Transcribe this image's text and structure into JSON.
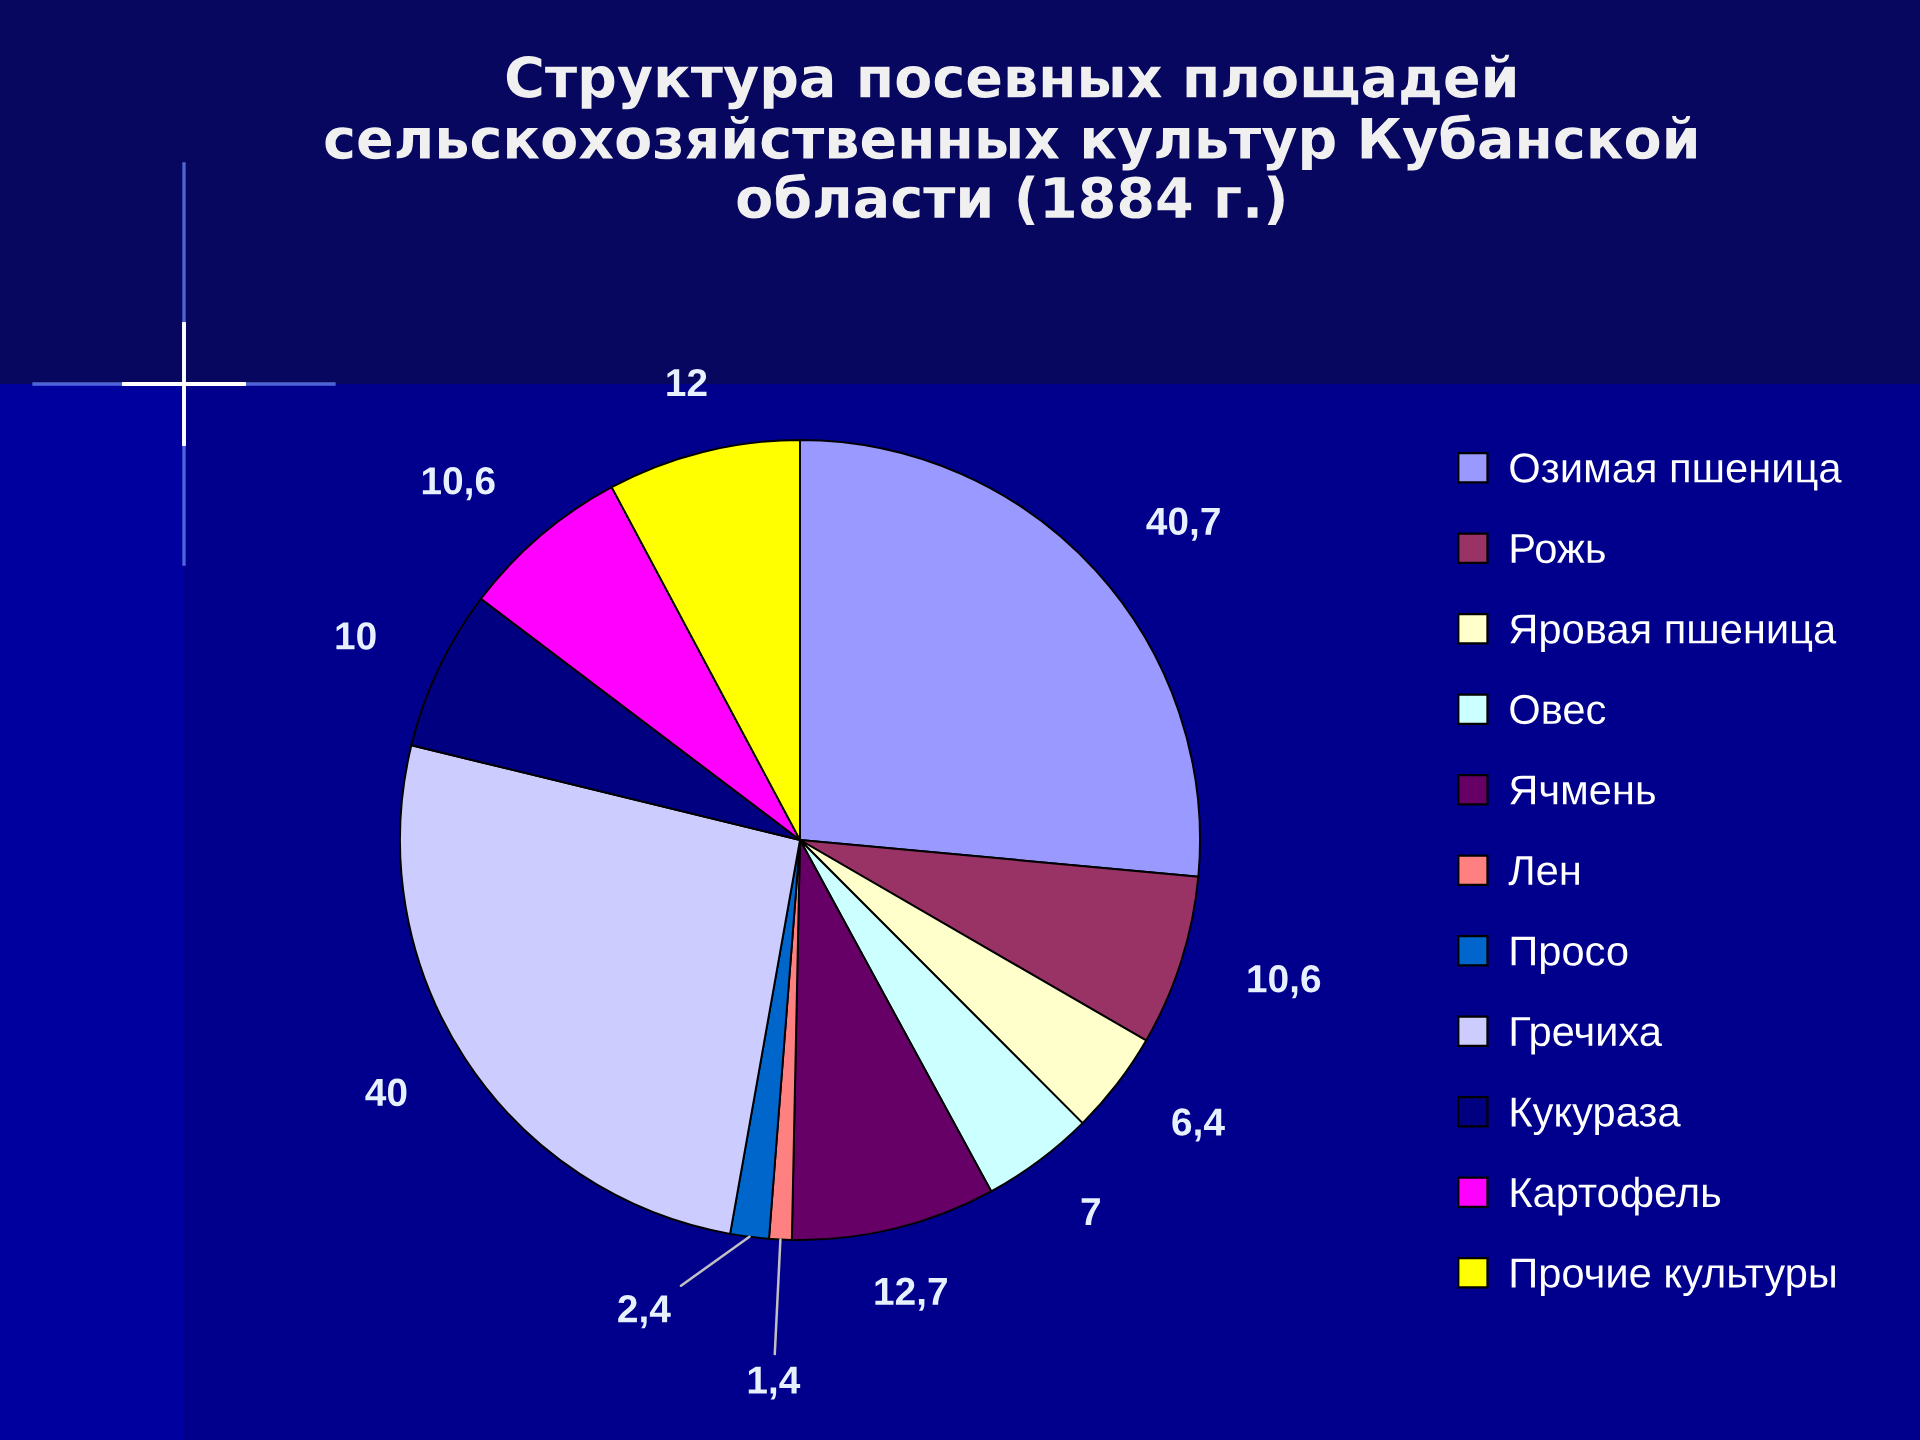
{
  "chart_data": {
    "type": "pie",
    "title": "Структура посевных площадей\nсельскохозяйственных культур Кубанской\nобласти (1884 г.)",
    "categories": [
      "Озимая пшеница",
      "Рожь",
      "Яровая пшеница",
      "Овес",
      "Ячмень",
      "Лен",
      "Просо",
      "Гречиха",
      "Кукураза",
      "Картофель",
      "Прочие культуры"
    ],
    "values": [
      40.7,
      10.6,
      6.4,
      7,
      12.7,
      1.4,
      2.4,
      40,
      10,
      10.6,
      12
    ],
    "value_labels": [
      "40,7",
      "10,6",
      "6,4",
      "7",
      "12,7",
      "1,4",
      "2,4",
      "40",
      "10",
      "10,6",
      "12"
    ],
    "colors": [
      "#9999ff",
      "#993366",
      "#ffffcc",
      "#ccffff",
      "#660066",
      "#ff8080",
      "#0066cc",
      "#ccccff",
      "#000080",
      "#ff00ff",
      "#ffff00"
    ],
    "legend": "right"
  }
}
